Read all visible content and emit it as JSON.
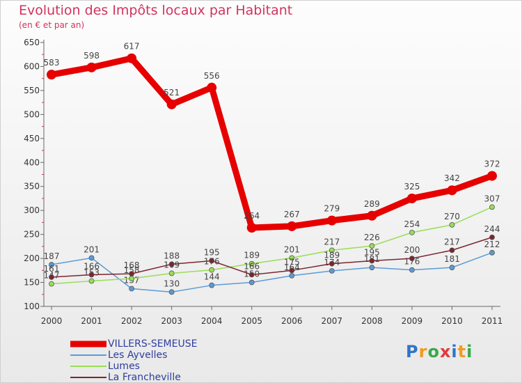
{
  "title": "Evolution des Impôts locaux par Habitant",
  "subtitle": "(en € et par an)",
  "logo": {
    "text": "Proxiti",
    "colors": [
      "#2e75c7",
      "#f39a1e",
      "#3aa84a",
      "#e23a3a",
      "#2e75c7",
      "#f39a1e",
      "#3aa84a"
    ]
  },
  "chart_data": {
    "type": "line",
    "title": "Evolution des Impôts locaux par Habitant",
    "subtitle": "(en € et par an)",
    "xlabel": "",
    "ylabel": "",
    "x": [
      "2000",
      "2001",
      "2002",
      "2003",
      "2004",
      "2005",
      "2006",
      "2007",
      "2008",
      "2009",
      "2010",
      "2011"
    ],
    "ylim": [
      100,
      650
    ],
    "yticks": [
      100,
      150,
      200,
      250,
      300,
      350,
      400,
      450,
      500,
      550,
      600,
      650
    ],
    "grid": false,
    "legend_position": "bottom-left",
    "series": [
      {
        "name": "VILLERS-SEMEUSE",
        "color": "#e60000",
        "width": "thick",
        "values": [
          583,
          598,
          617,
          521,
          556,
          264,
          267,
          279,
          289,
          325,
          342,
          372
        ]
      },
      {
        "name": "Les Ayvelles",
        "color": "#5b9bd5",
        "width": "thin",
        "values": [
          187,
          201,
          137,
          130,
          144,
          150,
          164,
          174,
          181,
          176,
          181,
          212
        ]
      },
      {
        "name": "Lumes",
        "color": "#99dd55",
        "width": "thin",
        "values": [
          147,
          153,
          158,
          169,
          176,
          189,
          201,
          217,
          226,
          254,
          270,
          307
        ]
      },
      {
        "name": "La Francheville",
        "color": "#7a2630",
        "width": "thin",
        "values": [
          161,
          166,
          168,
          188,
          195,
          166,
          175,
          189,
          195,
          200,
          217,
          244
        ]
      }
    ]
  }
}
